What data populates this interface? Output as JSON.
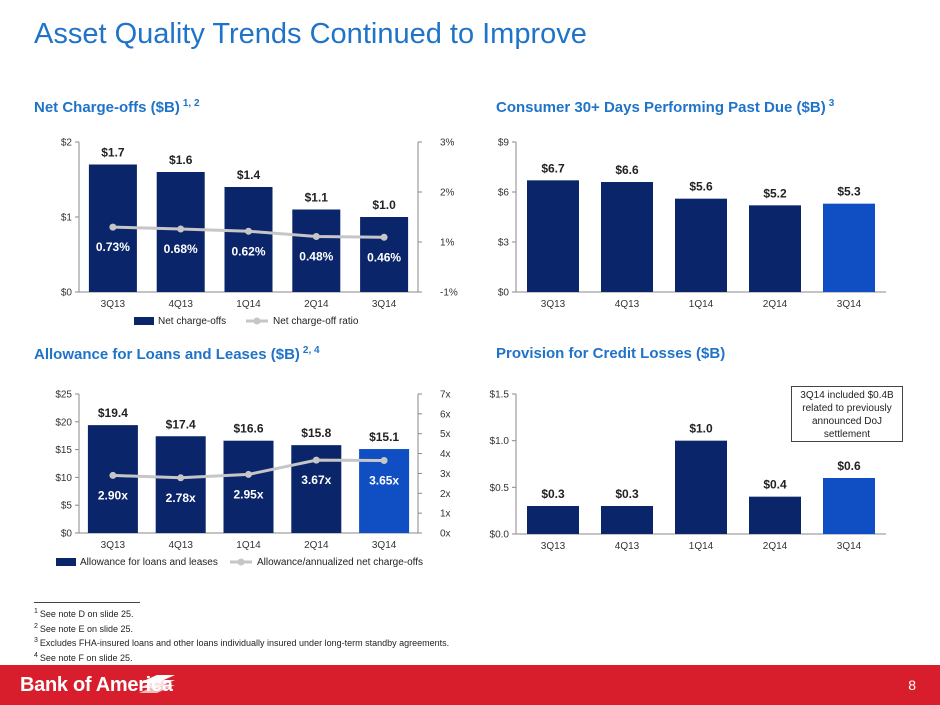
{
  "page": {
    "title": "Asset Quality Trends Continued to Improve",
    "page_number": "8",
    "brand": "Bank of America",
    "callout": "3Q14 included $0.4B related to previously announced DoJ settlement",
    "footnotes": [
      {
        "num": "1",
        "text": "See note D on slide 25."
      },
      {
        "num": "2",
        "text": "See note E on slide 25."
      },
      {
        "num": "3",
        "text": "Excludes FHA-insured loans and other loans individually insured under long-term standby agreements."
      },
      {
        "num": "4",
        "text": "See note F on slide 25."
      }
    ]
  },
  "colors": {
    "title": "#1f73c8",
    "bar_dark": "#0a2569",
    "bar_highlight": "#0f4fc3",
    "line": "#c6c6c6",
    "footer": "#d81e2c"
  },
  "chart_data": [
    {
      "id": "net-charge-offs",
      "type": "bar",
      "title": "Net Charge-offs ($B)",
      "title_sup": "1, 2",
      "categories": [
        "3Q13",
        "4Q13",
        "1Q14",
        "2Q14",
        "3Q14"
      ],
      "series": [
        {
          "name": "Net charge-offs",
          "type": "bar",
          "axis": "left",
          "values": [
            1.7,
            1.6,
            1.4,
            1.1,
            1.0
          ],
          "labels": [
            "$1.7",
            "$1.6",
            "$1.4",
            "$1.1",
            "$1.0"
          ]
        },
        {
          "name": "Net charge-off ratio",
          "type": "line",
          "axis": "right",
          "values": [
            0.73,
            0.68,
            0.62,
            0.48,
            0.46
          ],
          "labels": [
            "0.73%",
            "0.68%",
            "0.62%",
            "0.48%",
            "0.46%"
          ]
        }
      ],
      "ylim": [
        0,
        2
      ],
      "y_ticks": [
        "$0",
        "$1",
        "$2"
      ],
      "y2lim": [
        -1,
        3
      ],
      "y2_ticks": [
        "-1%",
        "1%",
        "2%",
        "3%"
      ],
      "legend": "bottom"
    },
    {
      "id": "consumer-past-due",
      "type": "bar",
      "title": "Consumer 30+ Days Performing Past Due ($B)",
      "title_sup": "3",
      "categories": [
        "3Q13",
        "4Q13",
        "1Q14",
        "2Q14",
        "3Q14"
      ],
      "series": [
        {
          "type": "bar",
          "values": [
            6.7,
            6.6,
            5.6,
            5.2,
            5.3
          ],
          "labels": [
            "$6.7",
            "$6.6",
            "$5.6",
            "$5.2",
            "$5.3"
          ]
        }
      ],
      "ylim": [
        0,
        9
      ],
      "y_ticks": [
        "$0",
        "$3",
        "$6",
        "$9"
      ],
      "highlight_last": true
    },
    {
      "id": "allowance-loans-leases",
      "type": "bar",
      "title": "Allowance for Loans and Leases ($B)",
      "title_sup": "2, 4",
      "categories": [
        "3Q13",
        "4Q13",
        "1Q14",
        "2Q14",
        "3Q14"
      ],
      "series": [
        {
          "name": "Allowance for loans and leases",
          "type": "bar",
          "axis": "left",
          "values": [
            19.4,
            17.4,
            16.6,
            15.8,
            15.1
          ],
          "labels": [
            "$19.4",
            "$17.4",
            "$16.6",
            "$15.8",
            "$15.1"
          ]
        },
        {
          "name": "Allowance/annualized net charge-offs",
          "type": "line",
          "axis": "right",
          "values": [
            2.9,
            2.78,
            2.95,
            3.67,
            3.65
          ],
          "labels": [
            "2.90x",
            "2.78x",
            "2.95x",
            "3.67x",
            "3.65x"
          ]
        }
      ],
      "ylim": [
        0,
        25
      ],
      "y_ticks": [
        "$0",
        "$5",
        "$10",
        "$15",
        "$20",
        "$25"
      ],
      "y2lim": [
        0,
        7
      ],
      "y2_ticks": [
        "0x",
        "1x",
        "2x",
        "3x",
        "4x",
        "5x",
        "6x",
        "7x"
      ],
      "legend": "bottom",
      "highlight_last": true
    },
    {
      "id": "provision-credit-losses",
      "type": "bar",
      "title": "Provision for Credit Losses ($B)",
      "categories": [
        "3Q13",
        "4Q13",
        "1Q14",
        "2Q14",
        "3Q14"
      ],
      "series": [
        {
          "type": "bar",
          "values": [
            0.3,
            0.3,
            1.0,
            0.4,
            0.6
          ],
          "labels": [
            "$0.3",
            "$0.3",
            "$1.0",
            "$0.4",
            "$0.6"
          ]
        }
      ],
      "ylim": [
        0,
        1.5
      ],
      "y_ticks": [
        "$0.0",
        "$0.5",
        "$1.0",
        "$1.5"
      ],
      "highlight_last": true
    }
  ]
}
